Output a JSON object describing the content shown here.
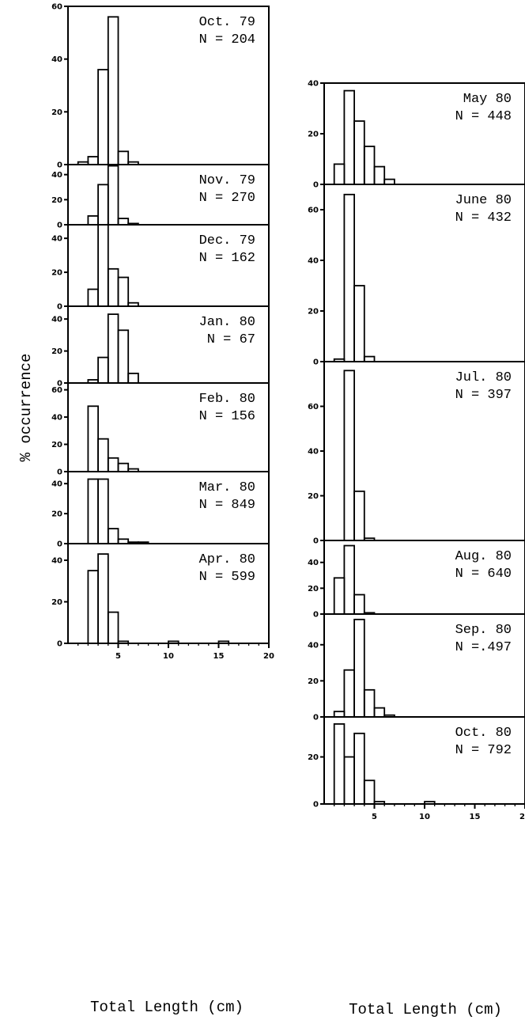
{
  "chart_data": {
    "type": "bar",
    "ylabel": "% occurrence",
    "xlabel": "Total Length (cm)",
    "xticks": [
      5,
      10,
      15,
      20
    ],
    "bin_width_cm": 1,
    "columns": [
      {
        "xlabel": "Total Length (cm)",
        "panels": [
          {
            "label": "Oct. 79",
            "n_label": "N = 204",
            "ymax": 60,
            "yticks": [
              0,
              20,
              40,
              60
            ],
            "bins": [
              [
                1,
                2,
                1
              ],
              [
                2,
                3,
                3
              ],
              [
                3,
                4,
                36
              ],
              [
                4,
                5,
                56
              ],
              [
                5,
                6,
                5
              ],
              [
                6,
                7,
                1
              ]
            ]
          },
          {
            "label": "Nov. 79",
            "n_label": "N = 270",
            "ymax": 48,
            "yticks": [
              0,
              20,
              40
            ],
            "bins": [
              [
                2,
                3,
                7
              ],
              [
                3,
                4,
                32
              ],
              [
                4,
                5,
                47
              ],
              [
                5,
                6,
                5
              ],
              [
                6,
                7,
                1
              ]
            ]
          },
          {
            "label": "Dec. 79",
            "n_label": "N = 162",
            "ymax": 48,
            "yticks": [
              0,
              20,
              40
            ],
            "bins": [
              [
                2,
                3,
                10
              ],
              [
                3,
                4,
                48
              ],
              [
                4,
                5,
                22
              ],
              [
                5,
                6,
                17
              ],
              [
                6,
                7,
                2
              ]
            ]
          },
          {
            "label": "Jan. 80",
            "n_label": "N = 67",
            "ymax": 48,
            "yticks": [
              0,
              20,
              40
            ],
            "bins": [
              [
                2,
                3,
                2
              ],
              [
                3,
                4,
                16
              ],
              [
                4,
                5,
                43
              ],
              [
                5,
                6,
                33
              ],
              [
                6,
                7,
                6
              ]
            ]
          },
          {
            "label": "Feb. 80",
            "n_label": "N = 156",
            "ymax": 65,
            "yticks": [
              0,
              20,
              40,
              60
            ],
            "bins": [
              [
                2,
                3,
                48
              ],
              [
                3,
                4,
                24
              ],
              [
                4,
                5,
                10
              ],
              [
                5,
                6,
                6
              ],
              [
                6,
                7,
                2
              ]
            ]
          },
          {
            "label": "Mar. 80",
            "n_label": "N = 849",
            "ymax": 48,
            "yticks": [
              0,
              20,
              40
            ],
            "bins": [
              [
                2,
                3,
                43
              ],
              [
                3,
                4,
                43
              ],
              [
                4,
                5,
                10
              ],
              [
                5,
                6,
                3
              ],
              [
                6,
                7,
                1
              ],
              [
                7,
                8,
                1
              ]
            ]
          },
          {
            "label": "Apr. 80",
            "n_label": "N = 599",
            "ymax": 48,
            "yticks": [
              0,
              20,
              40
            ],
            "bins": [
              [
                2,
                3,
                35
              ],
              [
                3,
                4,
                43
              ],
              [
                4,
                5,
                15
              ],
              [
                5,
                6,
                1
              ],
              [
                10,
                11,
                1
              ],
              [
                15,
                16,
                1
              ]
            ]
          }
        ]
      },
      {
        "xlabel": "Total Length (cm)",
        "panels": [
          {
            "label": "May  80",
            "n_label": "N = 448",
            "ymax": 40,
            "yticks": [
              0,
              20,
              40
            ],
            "bins": [
              [
                1,
                2,
                8
              ],
              [
                2,
                3,
                37
              ],
              [
                3,
                4,
                25
              ],
              [
                4,
                5,
                15
              ],
              [
                5,
                6,
                7
              ],
              [
                6,
                7,
                2
              ]
            ]
          },
          {
            "label": "June 80",
            "n_label": "N = 432",
            "ymax": 70,
            "yticks": [
              0,
              20,
              40,
              60
            ],
            "bins": [
              [
                1,
                2,
                1
              ],
              [
                2,
                3,
                66
              ],
              [
                3,
                4,
                30
              ],
              [
                4,
                5,
                2
              ]
            ]
          },
          {
            "label": "Jul. 80",
            "n_label": "N = 397",
            "ymax": 80,
            "yticks": [
              0,
              20,
              40,
              60
            ],
            "bins": [
              [
                2,
                3,
                76
              ],
              [
                3,
                4,
                22
              ],
              [
                4,
                5,
                1
              ]
            ]
          },
          {
            "label": "Aug. 80",
            "n_label": "N = 640",
            "ymax": 57,
            "yticks": [
              0,
              20,
              40
            ],
            "bins": [
              [
                1,
                2,
                28
              ],
              [
                2,
                3,
                53
              ],
              [
                3,
                4,
                15
              ],
              [
                4,
                5,
                1
              ]
            ]
          },
          {
            "label": "Sep. 80",
            "n_label": "N =.497",
            "ymax": 57,
            "yticks": [
              0,
              20,
              40
            ],
            "bins": [
              [
                1,
                2,
                3
              ],
              [
                2,
                3,
                26
              ],
              [
                3,
                4,
                54
              ],
              [
                4,
                5,
                15
              ],
              [
                5,
                6,
                5
              ],
              [
                6,
                7,
                1
              ]
            ]
          },
          {
            "label": "Oct. 80",
            "n_label": "N = 792",
            "ymax": 37,
            "yticks": [
              0,
              20
            ],
            "bins": [
              [
                1,
                2,
                34
              ],
              [
                2,
                3,
                20
              ],
              [
                3,
                4,
                30
              ],
              [
                4,
                5,
                10
              ],
              [
                5,
                6,
                1
              ],
              [
                10,
                11,
                1
              ]
            ]
          }
        ]
      }
    ]
  }
}
